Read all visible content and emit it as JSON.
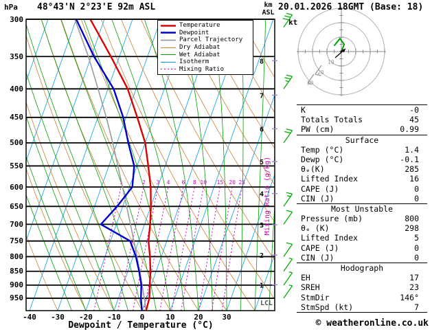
{
  "title": {
    "pressure_unit": "hPa",
    "station": "48°43'N 2°23'E 92m ASL",
    "datetime": "20.01.2026 18GMT (Base: 18)",
    "altitude_unit_line1": "km",
    "altitude_unit_line2": "ASL"
  },
  "legend": {
    "items": [
      {
        "label": "Temperature",
        "color": "#dd0000",
        "width": 2.6,
        "dash": ""
      },
      {
        "label": "Dewpoint",
        "color": "#0000cc",
        "width": 2.6,
        "dash": ""
      },
      {
        "label": "Parcel Trajectory",
        "color": "#9a9a9a",
        "width": 1.8,
        "dash": ""
      },
      {
        "label": "Dry Adiabat",
        "color": "#cc8033",
        "width": 1,
        "dash": ""
      },
      {
        "label": "Wet Adiabat",
        "color": "#00a000",
        "width": 1,
        "dash": ""
      },
      {
        "label": "Isotherm",
        "color": "#00a0e8",
        "width": 1,
        "dash": ""
      },
      {
        "label": "Mixing Ratio",
        "color": "#cc00bb",
        "width": 1,
        "dash": "2 3"
      }
    ]
  },
  "axes": {
    "pressure_ticks": [
      300,
      350,
      400,
      450,
      500,
      550,
      600,
      650,
      700,
      750,
      800,
      850,
      900,
      950
    ],
    "temp_ticks": [
      -40,
      -30,
      -20,
      -10,
      0,
      10,
      20,
      30
    ],
    "x_label": "Dewpoint / Temperature (°C)",
    "km_ticks": [
      1,
      2,
      3,
      4,
      5,
      6,
      7,
      8
    ],
    "lcl_label": "LCL",
    "mixing_ratio_label": "Mixing Ratio (g/kg)",
    "mixing_ratio_values": [
      1,
      2,
      3,
      4,
      6,
      8,
      10,
      15,
      20,
      25
    ]
  },
  "hodograph": {
    "unit_label": "kt",
    "ring_labels": [
      10,
      20,
      30
    ]
  },
  "table": {
    "sections": [
      {
        "header": null,
        "rows": [
          [
            "K",
            "-0"
          ],
          [
            "Totals Totals",
            "45"
          ],
          [
            "PW (cm)",
            "0.99"
          ]
        ]
      },
      {
        "header": "Surface",
        "rows": [
          [
            "Temp (°C)",
            "1.4"
          ],
          [
            "Dewp (°C)",
            "-0.1"
          ],
          [
            "θₑ(K)",
            "285"
          ],
          [
            "Lifted Index",
            "16"
          ],
          [
            "CAPE (J)",
            "0"
          ],
          [
            "CIN (J)",
            "0"
          ]
        ]
      },
      {
        "header": "Most Unstable",
        "rows": [
          [
            "Pressure (mb)",
            "800"
          ],
          [
            "θₑ (K)",
            "298"
          ],
          [
            "Lifted Index",
            "5"
          ],
          [
            "CAPE (J)",
            "0"
          ],
          [
            "CIN (J)",
            "0"
          ]
        ]
      },
      {
        "header": "Hodograph",
        "rows": [
          [
            "EH",
            "17"
          ],
          [
            "SREH",
            "23"
          ],
          [
            "StmDir",
            "146°"
          ],
          [
            "StmSpd (kt)",
            "7"
          ]
        ]
      }
    ]
  },
  "footer": {
    "credit": "© weatheronline.co.uk"
  },
  "chart_data": {
    "type": "skewt_logp_sounding",
    "pressure_range_hPa": [
      300,
      1000
    ],
    "temp_axis_C": [
      -40,
      30
    ],
    "pressure_hPa": [
      1000,
      950,
      900,
      850,
      800,
      750,
      700,
      650,
      600,
      550,
      500,
      450,
      400,
      350,
      300
    ],
    "temperature_C": [
      1.4,
      1.0,
      -0.5,
      -2.0,
      -4.0,
      -6.5,
      -8.0,
      -10.0,
      -12.5,
      -16.0,
      -20.0,
      -26.0,
      -33.0,
      -43.0,
      -55.0
    ],
    "dewpoint_C": [
      -0.1,
      -2.0,
      -3.5,
      -6.0,
      -9.0,
      -13.0,
      -25.5,
      -22.0,
      -19.0,
      -21.0,
      -26.0,
      -31.0,
      -38.0,
      -49.0,
      -60.0
    ],
    "parcel_C": [
      1.4,
      -0.8,
      -3.2,
      -5.8,
      -8.6,
      -11.7,
      -15.0,
      -18.6,
      -22.5,
      -26.8,
      -31.5,
      -37.0,
      -43.5,
      -51.0,
      -60.5
    ],
    "winds_kt": [
      {
        "p": 950,
        "spd": 5
      },
      {
        "p": 900,
        "spd": 5
      },
      {
        "p": 850,
        "spd": 5
      },
      {
        "p": 800,
        "spd": 10
      },
      {
        "p": 700,
        "spd": 10
      },
      {
        "p": 650,
        "spd": 15
      },
      {
        "p": 500,
        "spd": 20
      },
      {
        "p": 400,
        "spd": 25
      },
      {
        "p": 310,
        "spd": 30
      }
    ],
    "hodograph_trace_kt": [
      [
        0,
        0
      ],
      [
        2,
        5
      ],
      [
        -1,
        9
      ],
      [
        -5,
        4
      ]
    ],
    "indices": {
      "K": "-0",
      "Totals_Totals": 45,
      "PW_cm": 0.99,
      "surface": {
        "temp_C": 1.4,
        "dewp_C": -0.1,
        "theta_e_K": 285,
        "lifted_index": 16,
        "CAPE_J": 0,
        "CIN_J": 0
      },
      "most_unstable": {
        "pressure_mb": 800,
        "theta_e_K": 298,
        "lifted_index": 5,
        "CAPE_J": 0,
        "CIN_J": 0
      },
      "hodograph": {
        "EH": 17,
        "SREH": 23,
        "StmDir_deg": 146,
        "StmSpd_kt": 7
      }
    }
  }
}
